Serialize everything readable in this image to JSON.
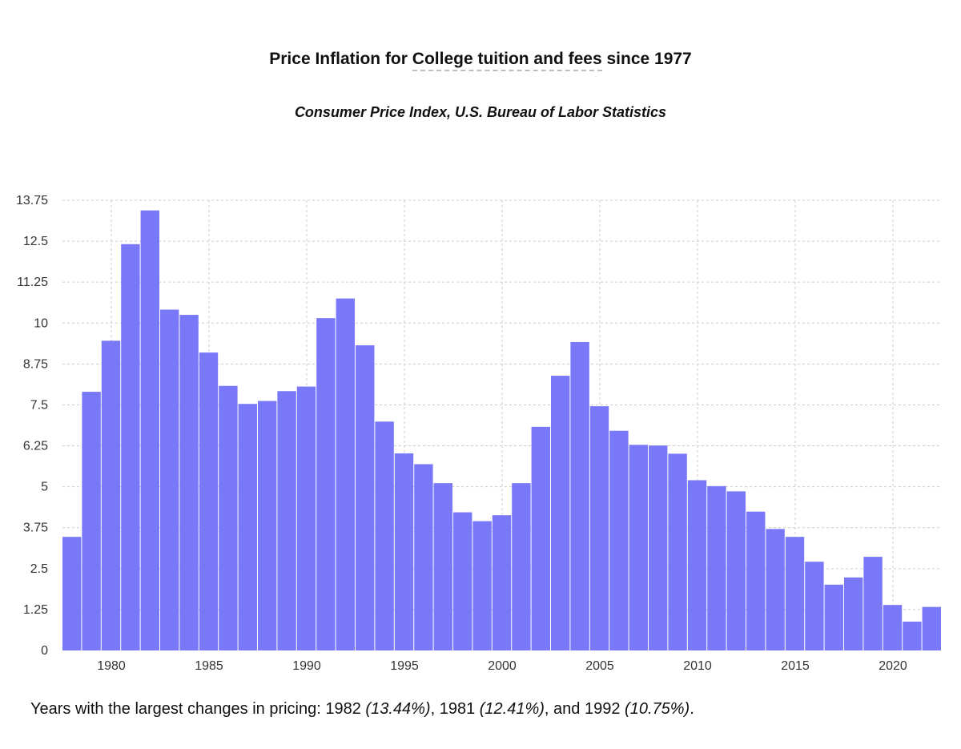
{
  "chart_data": {
    "type": "bar",
    "title_prefix": "Price Inflation for ",
    "title_item": "College tuition and fees",
    "title_suffix": " since 1977",
    "subtitle": "Consumer Price Index, U.S. Bureau of Labor Statistics",
    "xlabel": "",
    "ylabel": "",
    "grid": true,
    "bar_color": "#7878f8",
    "grid_color": "#cccccc",
    "ylim": [
      0,
      13.75
    ],
    "y_ticks": [
      "0",
      "1.25",
      "2.5",
      "3.75",
      "5",
      "6.25",
      "7.5",
      "8.75",
      "10",
      "11.25",
      "12.5",
      "13.75"
    ],
    "x_ticks": [
      "1980",
      "1985",
      "1990",
      "1995",
      "2000",
      "2005",
      "2010",
      "2015",
      "2020"
    ],
    "x_start": 1978,
    "x_end": 2022,
    "categories": [
      1978,
      1979,
      1980,
      1981,
      1982,
      1983,
      1984,
      1985,
      1986,
      1987,
      1988,
      1989,
      1990,
      1991,
      1992,
      1993,
      1994,
      1995,
      1996,
      1997,
      1998,
      1999,
      2000,
      2001,
      2002,
      2003,
      2004,
      2005,
      2006,
      2007,
      2008,
      2009,
      2010,
      2011,
      2012,
      2013,
      2014,
      2015,
      2016,
      2017,
      2018,
      2019,
      2020,
      2021,
      2022
    ],
    "values": [
      3.47,
      7.9,
      9.46,
      12.41,
      13.44,
      10.41,
      10.25,
      9.1,
      8.08,
      7.53,
      7.62,
      7.92,
      8.06,
      10.15,
      10.75,
      9.32,
      6.99,
      6.02,
      5.69,
      5.11,
      4.22,
      3.95,
      4.13,
      5.11,
      6.83,
      8.39,
      9.42,
      7.46,
      6.71,
      6.28,
      6.26,
      6.01,
      5.2,
      5.02,
      4.86,
      4.24,
      3.71,
      3.47,
      2.71,
      2.01,
      2.23,
      2.86,
      1.39,
      0.88,
      1.33
    ]
  },
  "summary": {
    "prefix": "Years with the largest changes in pricing: ",
    "year1": "1982",
    "pct1": "(13.44%)",
    "sep1": ", ",
    "year2": "1981",
    "pct2": "(12.41%)",
    "sep2": ", and ",
    "year3": "1992",
    "pct3": "(10.75%)",
    "end": "."
  }
}
